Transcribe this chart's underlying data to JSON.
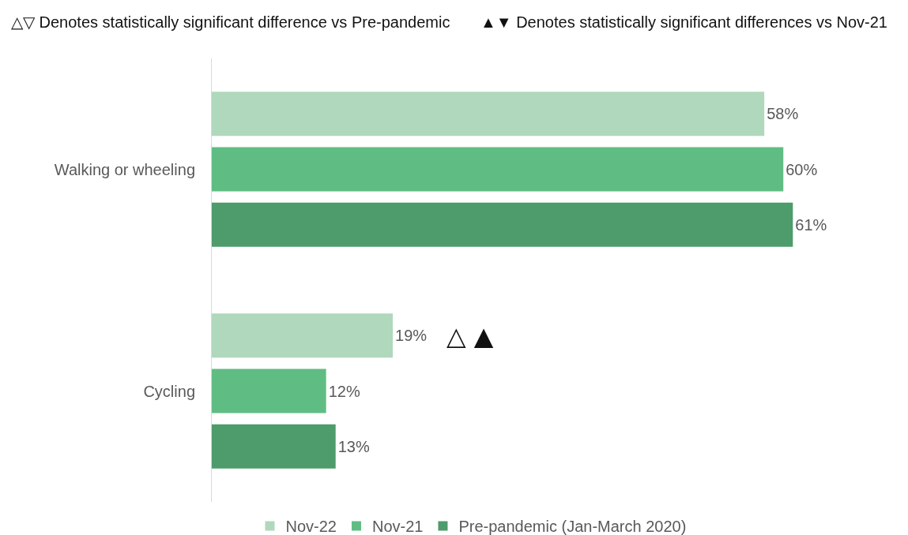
{
  "chart_data": {
    "type": "bar",
    "orientation": "horizontal",
    "categories": [
      "Walking or wheeling",
      "Cycling"
    ],
    "series": [
      {
        "name": "Nov-22",
        "color": "#b0d8bc",
        "values": [
          58,
          19
        ],
        "value_labels": [
          "58%",
          "19%"
        ]
      },
      {
        "name": "Nov-21",
        "color": "#5fbd84",
        "values": [
          60,
          12
        ],
        "value_labels": [
          "60%",
          "12%"
        ]
      },
      {
        "name": "Pre-pandemic (Jan-March 2020)",
        "color": "#4e9b6b",
        "values": [
          61,
          13
        ],
        "value_labels": [
          "61%",
          "13%"
        ]
      }
    ],
    "legend": "bottom",
    "tick_labels": "y",
    "annotations": [
      "△▽ Denotes statistically significant difference vs Pre-pandemic",
      "▲▼ Denotes statistically significant differences vs Nov-21",
      "△ ▲"
    ]
  }
}
